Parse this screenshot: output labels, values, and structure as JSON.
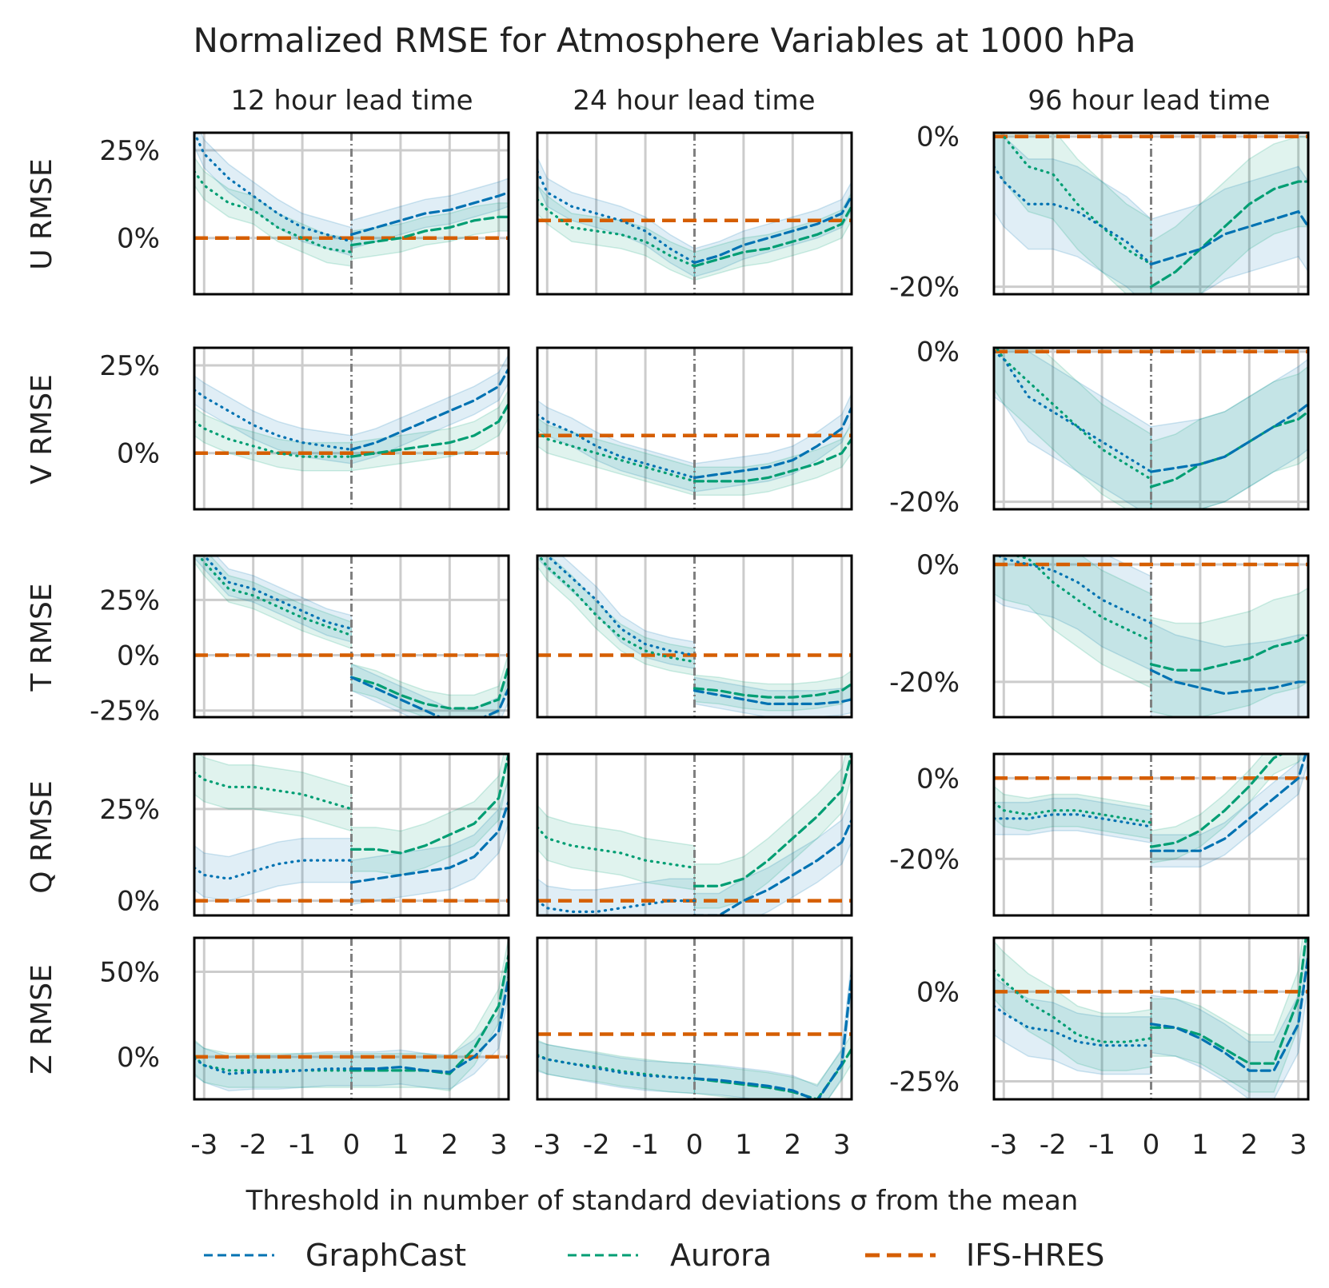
{
  "chart_data": {
    "type": "line",
    "title": "Normalized RMSE for Atmosphere Variables at 1000 hPa",
    "xlabel": "Threshold in number of standard deviations σ from the mean",
    "x_ticks": [
      "-3",
      "-2",
      "-1",
      "0",
      "1",
      "2",
      "3"
    ],
    "column_titles": [
      "12 hour lead time",
      "24 hour lead time",
      "96 hour lead time"
    ],
    "legend": [
      {
        "name": "GraphCast",
        "color": "#0072B2",
        "style": "dashed"
      },
      {
        "name": "Aurora",
        "color": "#009E73",
        "style": "dashed"
      },
      {
        "name": "IFS-HRES",
        "color": "#D55E00",
        "style": "dashed-thick"
      }
    ],
    "x_lo": [
      -3.2,
      -3,
      -2.5,
      -2,
      -1.5,
      -1,
      -0.5,
      0
    ],
    "x_hi": [
      0,
      0.5,
      1,
      1.5,
      2,
      2.5,
      3,
      3.2
    ],
    "rows": [
      {
        "ylabel": "U RMSE",
        "panels": [
          {
            "ylim": [
              -16,
              30
            ],
            "yticks": [
              {
                "v": 25,
                "label": "25%"
              },
              {
                "v": 0,
                "label": "0%"
              }
            ],
            "gc_lo": [
              30,
              24,
              17,
              12,
              7,
              3,
              1,
              -1
            ],
            "gc_hi": [
              1,
              3,
              5,
              7,
              8,
              10,
              12,
              13
            ],
            "au_lo": [
              19,
              15,
              10,
              8,
              3,
              0,
              -3,
              -4
            ],
            "au_hi": [
              -2,
              -1,
              0,
              2,
              3,
              5,
              6,
              6
            ],
            "band_w": 4
          },
          {
            "ylim": [
              -21,
              25
            ],
            "yticks": [],
            "gc_lo": [
              14,
              8,
              4,
              2,
              0,
              -3,
              -8,
              -12
            ],
            "gc_hi": [
              -12,
              -10,
              -7,
              -5,
              -3,
              -1,
              2,
              7
            ],
            "au_lo": [
              6,
              3,
              -2,
              -3,
              -4,
              -6,
              -10,
              -13
            ],
            "au_hi": [
              -13,
              -11,
              -9,
              -8,
              -6,
              -4,
              -1,
              4
            ],
            "band_w": 4
          },
          {
            "ylim": [
              -21,
              0.5
            ],
            "yticks": [
              {
                "v": 0,
                "label": "0%"
              },
              {
                "v": -20,
                "label": "-20%"
              }
            ],
            "gc_lo": [
              -4,
              -6,
              -9,
              -9,
              -10,
              -12,
              -14,
              -17
            ],
            "gc_hi": [
              -17,
              -16,
              -15,
              -13,
              -12,
              -11,
              -10,
              -12
            ],
            "au_lo": [
              2,
              0,
              -4,
              -5,
              -9,
              -12,
              -15,
              -17
            ],
            "au_hi": [
              -20,
              -18,
              -15,
              -12,
              -9,
              -7,
              -6,
              -6
            ],
            "band_w": 6
          }
        ]
      },
      {
        "ylabel": "V RMSE",
        "panels": [
          {
            "ylim": [
              -16,
              30
            ],
            "yticks": [
              {
                "v": 25,
                "label": "25%"
              },
              {
                "v": 0,
                "label": "0%"
              }
            ],
            "gc_lo": [
              18,
              16,
              12,
              8,
              5,
              3,
              2,
              1
            ],
            "gc_hi": [
              1,
              3,
              6,
              9,
              12,
              15,
              19,
              24
            ],
            "au_lo": [
              9,
              7,
              4,
              2,
              0,
              -1,
              -1,
              -1
            ],
            "au_hi": [
              -1,
              0,
              1,
              2,
              3,
              5,
              9,
              14
            ],
            "band_w": 4
          },
          {
            "ylim": [
              -21,
              25
            ],
            "yticks": [],
            "gc_lo": [
              6,
              4,
              1,
              -3,
              -6,
              -8,
              -10,
              -12
            ],
            "gc_hi": [
              -12,
              -11,
              -10,
              -9,
              -7,
              -3,
              2,
              8
            ],
            "au_lo": [
              1,
              -1,
              -3,
              -5,
              -7,
              -9,
              -11,
              -13
            ],
            "au_hi": [
              -13,
              -13,
              -13,
              -12,
              -10,
              -8,
              -5,
              -1
            ],
            "band_w": 4
          },
          {
            "ylim": [
              -21,
              0.5
            ],
            "yticks": [
              {
                "v": 0,
                "label": "0%"
              },
              {
                "v": -20,
                "label": "-20%"
              }
            ],
            "gc_lo": [
              0,
              -1,
              -6,
              -8,
              -10,
              -12,
              -14,
              -16
            ],
            "gc_hi": [
              -16,
              -15.5,
              -15,
              -14,
              -12,
              -10,
              -8,
              -7
            ],
            "au_lo": [
              1,
              -1,
              -4,
              -7,
              -10,
              -13,
              -15,
              -17
            ],
            "au_hi": [
              -18,
              -17,
              -15,
              -14,
              -12,
              -10,
              -9,
              -8
            ],
            "band_w": 6
          }
        ]
      },
      {
        "ylabel": "T RMSE",
        "panels": [
          {
            "ylim": [
              -28,
              45
            ],
            "yticks": [
              {
                "v": 25,
                "label": "25%"
              },
              {
                "v": 0,
                "label": "0%"
              },
              {
                "v": -25,
                "label": "-25%"
              }
            ],
            "gc_lo": [
              50,
              45,
              33,
              30,
              25,
              20,
              15,
              12
            ],
            "gc_hi": [
              -10,
              -15,
              -20,
              -25,
              -30,
              -30,
              -25,
              -15
            ],
            "au_lo": [
              48,
              42,
              30,
              27,
              22,
              17,
              13,
              9
            ],
            "au_hi": [
              -10,
              -13,
              -18,
              -22,
              -24,
              -24,
              -20,
              -5
            ],
            "band_w": 6
          },
          {
            "ylim": [
              -28,
              45
            ],
            "yticks": [],
            "gc_lo": [
              50,
              45,
              35,
              25,
              12,
              5,
              2,
              0
            ],
            "gc_hi": [
              -16,
              -18,
              -20,
              -22,
              -22,
              -22,
              -21,
              -20
            ],
            "au_lo": [
              46,
              40,
              30,
              18,
              8,
              2,
              -1,
              -3
            ],
            "au_hi": [
              -15,
              -16,
              -18,
              -19,
              -19,
              -18,
              -16,
              -13
            ],
            "band_w": 6
          },
          {
            "ylim": [
              -26,
              1.5
            ],
            "yticks": [
              {
                "v": 0,
                "label": "0%"
              },
              {
                "v": -20,
                "label": "-20%"
              }
            ],
            "gc_lo": [
              2,
              1,
              0,
              -1,
              -3,
              -6,
              -8,
              -10
            ],
            "gc_hi": [
              -18,
              -20,
              -21,
              -22,
              -21.5,
              -21,
              -20,
              -20
            ],
            "au_lo": [
              3,
              2,
              1,
              -3,
              -6,
              -9,
              -11,
              -13
            ],
            "au_hi": [
              -17,
              -18,
              -18,
              -17,
              -16,
              -14,
              -13,
              -12
            ],
            "band_w": 8
          }
        ]
      },
      {
        "ylabel": "Q RMSE",
        "panels": [
          {
            "ylim": [
              -4,
              40
            ],
            "yticks": [
              {
                "v": 25,
                "label": "25%"
              },
              {
                "v": 0,
                "label": "0%"
              }
            ],
            "gc_lo": [
              9,
              7,
              6,
              8,
              10,
              11,
              11,
              11
            ],
            "gc_hi": [
              5,
              6,
              7,
              8,
              9,
              12,
              19,
              27
            ],
            "au_lo": [
              35,
              33,
              31,
              31,
              30,
              29,
              27,
              25
            ],
            "au_hi": [
              14,
              14,
              13,
              15,
              18,
              21,
              28,
              40
            ],
            "band_w": 6
          },
          {
            "ylim": [
              -4,
              40
            ],
            "yticks": [],
            "gc_lo": [
              0,
              -2,
              -3,
              -3,
              -2,
              -1,
              0,
              0
            ],
            "gc_hi": [
              -4,
              -4,
              0,
              3,
              7,
              11,
              16,
              22
            ],
            "au_lo": [
              20,
              17,
              15,
              14,
              13,
              11,
              10,
              9
            ],
            "au_hi": [
              4,
              4,
              6,
              11,
              17,
              23,
              30,
              40
            ],
            "band_w": 6
          },
          {
            "ylim": [
              -34,
              6
            ],
            "yticks": [
              {
                "v": 0,
                "label": "0%"
              },
              {
                "v": -20,
                "label": "-20%"
              }
            ],
            "gc_lo": [
              -10,
              -10,
              -10,
              -9,
              -9,
              -10,
              -11,
              -12
            ],
            "gc_hi": [
              -18,
              -18,
              -18,
              -15,
              -10,
              -5,
              0,
              8
            ],
            "au_lo": [
              -6,
              -8,
              -9,
              -8,
              -8,
              -9,
              -10,
              -11
            ],
            "au_hi": [
              -17,
              -16,
              -13,
              -8,
              -2,
              5,
              8,
              10
            ],
            "band_w": 4
          }
        ]
      },
      {
        "ylabel": "Z RMSE",
        "panels": [
          {
            "ylim": [
              -25,
              70
            ],
            "yticks": [
              {
                "v": 50,
                "label": "50%"
              },
              {
                "v": 0,
                "label": "0%"
              }
            ],
            "gc_lo": [
              -1,
              -5,
              -10,
              -9,
              -9,
              -8,
              -7,
              -7
            ],
            "gc_hi": [
              -7,
              -7,
              -6,
              -8,
              -9,
              0,
              15,
              47
            ],
            "au_lo": [
              0,
              -5,
              -8,
              -8,
              -8,
              -8,
              -8,
              -8
            ],
            "au_hi": [
              -8,
              -8,
              -8,
              -8,
              -10,
              5,
              30,
              60
            ],
            "band_w": 10
          },
          {
            "ylim": [
              -44,
              65
            ],
            "yticks": [],
            "gc_lo": [
              -15,
              -17,
              -20,
              -23,
              -26,
              -28,
              -29,
              -30
            ],
            "gc_hi": [
              -30,
              -31,
              -33,
              -35,
              -38,
              -45,
              -20,
              40
            ],
            "au_lo": [
              -14,
              -17,
              -20,
              -22,
              -25,
              -27,
              -29,
              -30
            ],
            "au_hi": [
              -30,
              -32,
              -34,
              -36,
              -39,
              -44,
              -21,
              -10
            ],
            "band_w": 10
          },
          {
            "ylim": [
              -30,
              15
            ],
            "yticks": [
              {
                "v": 0,
                "label": "0%"
              },
              {
                "v": -25,
                "label": "-25%"
              }
            ],
            "gc_lo": [
              -4,
              -6,
              -10,
              -11,
              -14,
              -15,
              -15,
              -15
            ],
            "gc_hi": [
              -9,
              -10,
              -13,
              -17,
              -22,
              -22,
              -9,
              10
            ],
            "au_lo": [
              6,
              3,
              -3,
              -7,
              -12,
              -14,
              -14,
              -13
            ],
            "au_hi": [
              -10,
              -10,
              -12,
              -16,
              -20,
              -20,
              -2,
              20
            ],
            "band_w": 8
          }
        ]
      }
    ]
  }
}
